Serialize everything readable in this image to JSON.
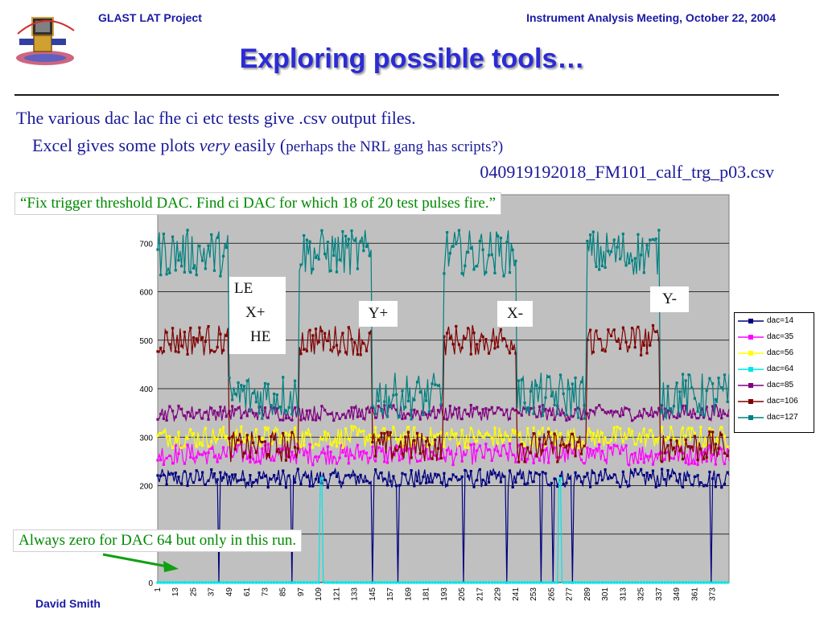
{
  "header": {
    "left": "GLAST LAT Project",
    "right": "Instrument Analysis Meeting, October 22, 2004"
  },
  "title": "Exploring possible tools…",
  "body": {
    "line1": "The various dac lac fhe ci etc tests give .csv output files.",
    "line2_a": "Excel gives some plots ",
    "line2_b": "very",
    "line2_c": " easily (",
    "line2_d": "perhaps the NRL gang has scripts?)",
    "filename": "040919192018_FM101_calf_trg_p03.csv",
    "quote": "“Fix trigger threshold DAC. Find ci DAC for which 18 of 20 test pulses fire.”",
    "annotation": "Always zero for DAC 64 but only in this run."
  },
  "footer": {
    "author": "David Smith"
  },
  "labels": {
    "le": "LE",
    "xplus": "X+",
    "he": "HE",
    "yplus": "Y+",
    "xminus": "X-",
    "yminus": "Y-"
  },
  "chart_data": {
    "type": "line",
    "x_range": [
      1,
      384
    ],
    "ylim": [
      0,
      800
    ],
    "y_ticks": [
      0,
      100,
      200,
      300,
      400,
      500,
      600,
      700
    ],
    "x_tick_labels": [
      "1",
      "13",
      "25",
      "37",
      "49",
      "61",
      "73",
      "85",
      "97",
      "109",
      "121",
      "133",
      "145",
      "157",
      "169",
      "181",
      "193",
      "205",
      "217",
      "229",
      "241",
      "253",
      "265",
      "277",
      "289",
      "301",
      "313",
      "325",
      "337",
      "349",
      "361",
      "373"
    ],
    "grid": "horizontal",
    "background": "#c0c0c0",
    "legend_position": "right",
    "series": [
      {
        "name": "dac=14",
        "color": "#000080",
        "typical": 215,
        "spread": 12,
        "drops": [
          42,
          91,
          145,
          162,
          206,
          235,
          258,
          266,
          279,
          372
        ]
      },
      {
        "name": "dac=35",
        "color": "#ff00ff",
        "typical": 265,
        "spread": 14
      },
      {
        "name": "dac=56",
        "color": "#ffff00",
        "typical": 300,
        "spread": 14
      },
      {
        "name": "dac=64",
        "color": "#00e5e5",
        "typical": 0,
        "spread": 0,
        "spikes": [
          110,
          111,
          270,
          271
        ]
      },
      {
        "name": "dac=85",
        "color": "#800080",
        "typical": 350,
        "spread": 10
      },
      {
        "name": "dac=106",
        "color": "#800000",
        "typical": 500,
        "spread": 20,
        "segments_low": 280
      },
      {
        "name": "dac=127",
        "color": "#008080",
        "typical": 680,
        "spread": 30,
        "segments_low": 385
      }
    ],
    "segments": [
      [
        1,
        48
      ],
      [
        96,
        144
      ],
      [
        193,
        241
      ],
      [
        289,
        337
      ]
    ]
  }
}
